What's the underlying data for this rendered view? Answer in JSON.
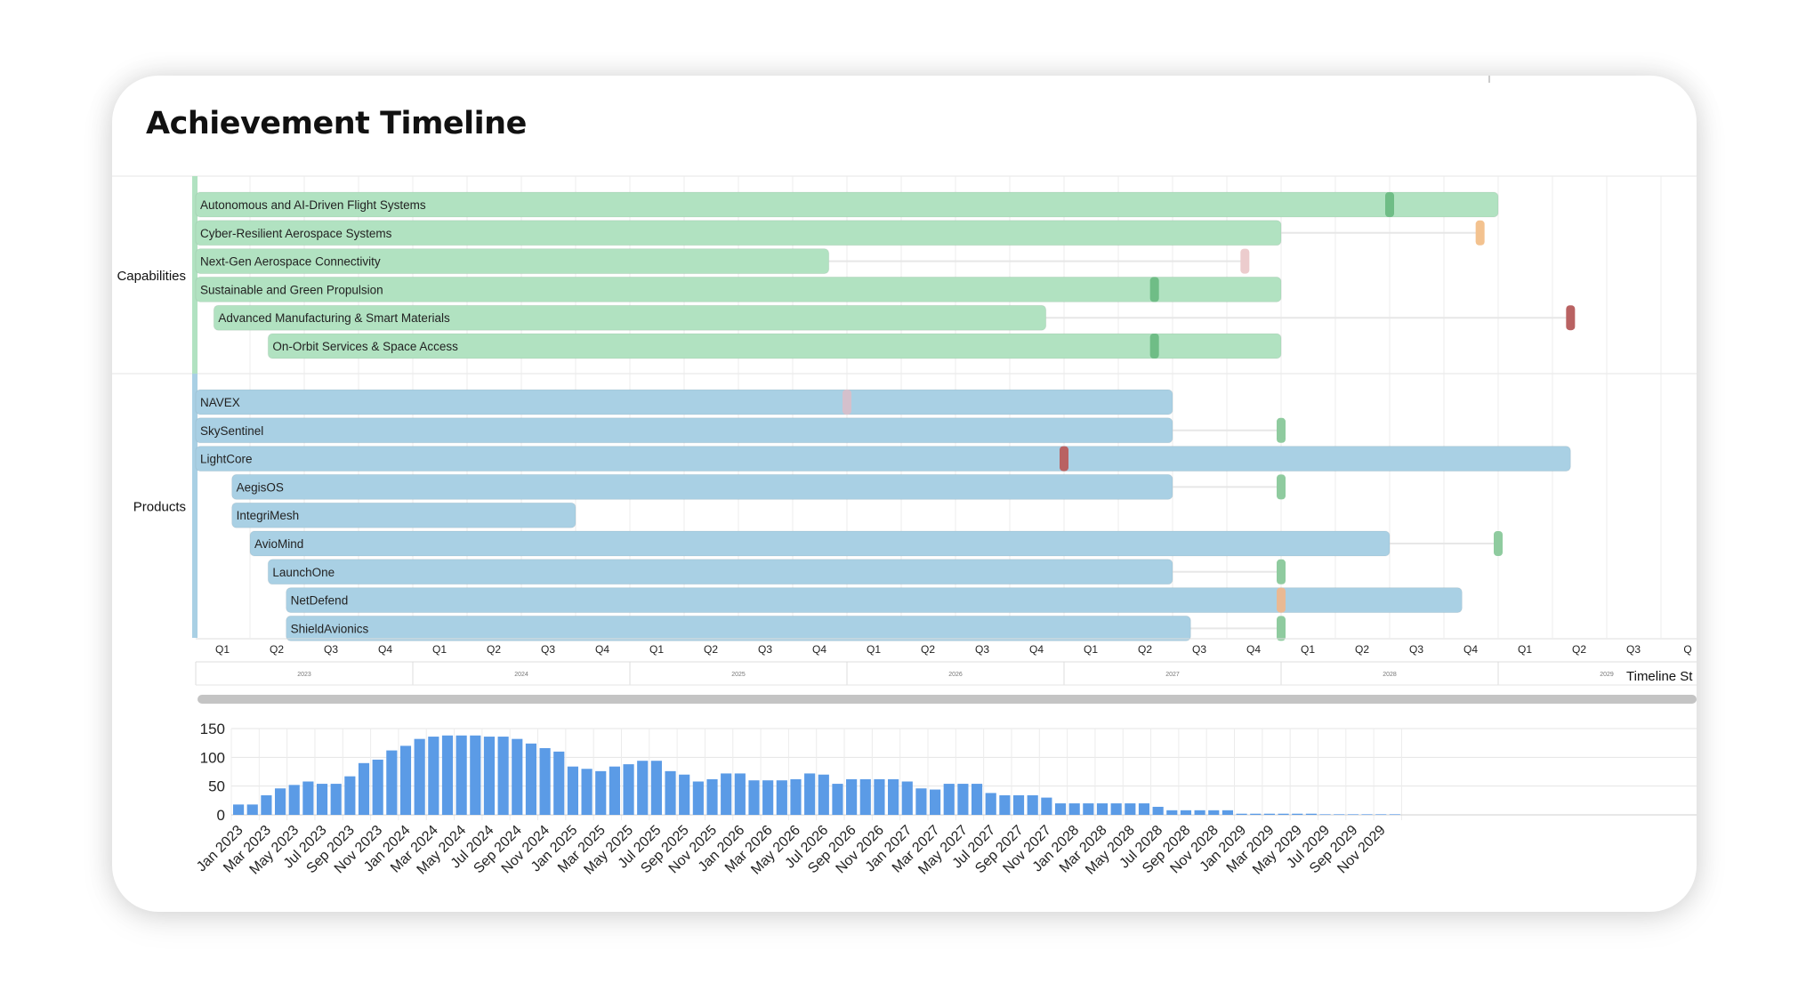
{
  "title": "Achievement Timeline",
  "timeline_start": "2023-01",
  "timeline_end": "2029-12",
  "groups": [
    {
      "label": "Capabilities",
      "color": "#b1e2c1",
      "rows": [
        {
          "label": "Autonomous and AI-Driven Flight Systems",
          "start": "2023-01",
          "end": "2029-01",
          "milestone": "2028-07",
          "milestone_color": "#6fbd86",
          "link": false
        },
        {
          "label": "Cyber-Resilient Aerospace Systems",
          "start": "2023-01",
          "end": "2028-01",
          "milestone": "2028-12",
          "milestone_color": "#f3c28f",
          "link": true
        },
        {
          "label": "Next-Gen Aerospace Connectivity",
          "start": "2023-01",
          "end": "2025-12",
          "milestone": "2027-11",
          "milestone_color": "#eccccd",
          "link": true
        },
        {
          "label": "Sustainable and Green Propulsion",
          "start": "2023-01",
          "end": "2028-01",
          "milestone": "2027-06",
          "milestone_color": "#6fbd86",
          "link": false
        },
        {
          "label": "Advanced Manufacturing & Smart Materials",
          "start": "2023-02",
          "end": "2026-12",
          "milestone": "2029-05",
          "milestone_color": "#b96262",
          "link": true
        },
        {
          "label": "On-Orbit Services & Space Access",
          "start": "2023-05",
          "end": "2028-01",
          "milestone": "2027-06",
          "milestone_color": "#6fbd86",
          "link": false
        }
      ]
    },
    {
      "label": "Products",
      "color": "#a9d0e4",
      "rows": [
        {
          "label": "NAVEX",
          "start": "2023-01",
          "end": "2027-07",
          "milestone": "2026-01",
          "milestone_color": "#d4c0cc",
          "link": false
        },
        {
          "label": "SkySentinel",
          "start": "2023-01",
          "end": "2027-07",
          "milestone": "2028-01",
          "milestone_color": "#8fcb9f",
          "link": true
        },
        {
          "label": "LightCore",
          "start": "2023-01",
          "end": "2029-05",
          "milestone": "2027-01",
          "milestone_color": "#b96262",
          "link": false
        },
        {
          "label": "AegisOS",
          "start": "2023-03",
          "end": "2027-07",
          "milestone": "2028-01",
          "milestone_color": "#8fcb9f",
          "link": true
        },
        {
          "label": "IntegriMesh",
          "start": "2023-03",
          "end": "2024-10",
          "milestone": null,
          "milestone_color": null,
          "link": false
        },
        {
          "label": "AvioMind",
          "start": "2023-04",
          "end": "2028-07",
          "milestone": "2029-01",
          "milestone_color": "#8fcb9f",
          "link": true
        },
        {
          "label": "LaunchOne",
          "start": "2023-05",
          "end": "2027-07",
          "milestone": "2028-01",
          "milestone_color": "#8fcb9f",
          "link": true
        },
        {
          "label": "NetDefend",
          "start": "2023-06",
          "end": "2028-11",
          "milestone": "2028-01",
          "milestone_color": "#e9b993",
          "link": false
        },
        {
          "label": "ShieldAvionics",
          "start": "2023-06",
          "end": "2027-08",
          "milestone": "2028-01",
          "milestone_color": "#8fcb9f",
          "link": true
        }
      ]
    }
  ],
  "quarter_labels": [
    "Q1",
    "Q2",
    "Q3",
    "Q4",
    "Q1",
    "Q2",
    "Q3",
    "Q4",
    "Q1",
    "Q2",
    "Q3",
    "Q4",
    "Q1",
    "Q2",
    "Q3",
    "Q4",
    "Q1",
    "Q2",
    "Q3",
    "Q4",
    "Q1",
    "Q2",
    "Q3",
    "Q4",
    "Q1",
    "Q2",
    "Q3",
    "Q"
  ],
  "year_labels": [
    "2023",
    "2024",
    "2025",
    "2026",
    "2027",
    "2028",
    "2029"
  ],
  "timeline_start_label": "Timeline St",
  "chart_data": {
    "type": "bar",
    "title": "",
    "xlabel": "",
    "ylabel": "",
    "ylim": [
      0,
      150
    ],
    "yticks": [
      0,
      50,
      100,
      150
    ],
    "grid": true,
    "bar_color": "#5b9be6",
    "x": [
      "Jan 2023",
      "Feb 2023",
      "Mar 2023",
      "Apr 2023",
      "May 2023",
      "Jun 2023",
      "Jul 2023",
      "Aug 2023",
      "Sep 2023",
      "Oct 2023",
      "Nov 2023",
      "Dec 2023",
      "Jan 2024",
      "Feb 2024",
      "Mar 2024",
      "Apr 2024",
      "May 2024",
      "Jun 2024",
      "Jul 2024",
      "Aug 2024",
      "Sep 2024",
      "Oct 2024",
      "Nov 2024",
      "Dec 2024",
      "Jan 2025",
      "Feb 2025",
      "Mar 2025",
      "Apr 2025",
      "May 2025",
      "Jun 2025",
      "Jul 2025",
      "Aug 2025",
      "Sep 2025",
      "Oct 2025",
      "Nov 2025",
      "Dec 2025",
      "Jan 2026",
      "Feb 2026",
      "Mar 2026",
      "Apr 2026",
      "May 2026",
      "Jun 2026",
      "Jul 2026",
      "Aug 2026",
      "Sep 2026",
      "Oct 2026",
      "Nov 2026",
      "Dec 2026",
      "Jan 2027",
      "Feb 2027",
      "Mar 2027",
      "Apr 2027",
      "May 2027",
      "Jun 2027",
      "Jul 2027",
      "Aug 2027",
      "Sep 2027",
      "Oct 2027",
      "Nov 2027",
      "Dec 2027",
      "Jan 2028",
      "Feb 2028",
      "Mar 2028",
      "Apr 2028",
      "May 2028",
      "Jun 2028",
      "Jul 2028",
      "Aug 2028",
      "Sep 2028",
      "Oct 2028",
      "Nov 2028",
      "Dec 2028",
      "Jan 2029",
      "Feb 2029",
      "Mar 2029",
      "Apr 2029",
      "May 2029",
      "Jun 2029",
      "Jul 2029",
      "Aug 2029",
      "Sep 2029",
      "Oct 2029",
      "Nov 2029",
      "Dec 2029"
    ],
    "x_tick_labels": [
      "Jan 2023",
      "Mar 2023",
      "May 2023",
      "Jul 2023",
      "Sep 2023",
      "Nov 2023",
      "Jan 2024",
      "Mar 2024",
      "May 2024",
      "Jul 2024",
      "Sep 2024",
      "Nov 2024",
      "Jan 2025",
      "Mar 2025",
      "May 2025",
      "Jul 2025",
      "Sep 2025",
      "Nov 2025",
      "Jan 2026",
      "Mar 2026",
      "May 2026",
      "Jul 2026",
      "Sep 2026",
      "Nov 2026",
      "Jan 2027",
      "Mar 2027",
      "May 2027",
      "Jul 2027",
      "Sep 2027",
      "Nov 2027",
      "Jan 2028",
      "Mar 2028",
      "May 2028",
      "Jul 2028",
      "Sep 2028",
      "Nov 2028",
      "Jan 2029",
      "Mar 2029",
      "May 2029",
      "Jul 2029",
      "Sep 2029",
      "Nov 2029"
    ],
    "values": [
      18,
      18,
      34,
      46,
      52,
      58,
      54,
      54,
      67,
      90,
      96,
      112,
      120,
      132,
      136,
      138,
      138,
      138,
      136,
      136,
      132,
      124,
      116,
      110,
      84,
      80,
      76,
      84,
      88,
      94,
      94,
      76,
      70,
      58,
      62,
      72,
      72,
      60,
      60,
      60,
      62,
      72,
      70,
      54,
      62,
      62,
      62,
      62,
      58,
      46,
      44,
      54,
      54,
      54,
      38,
      34,
      34,
      34,
      30,
      20,
      20,
      20,
      20,
      20,
      20,
      20,
      14,
      8,
      8,
      8,
      8,
      8,
      2,
      2,
      2,
      2,
      2,
      2,
      1,
      1,
      1,
      1,
      1,
      1
    ]
  }
}
